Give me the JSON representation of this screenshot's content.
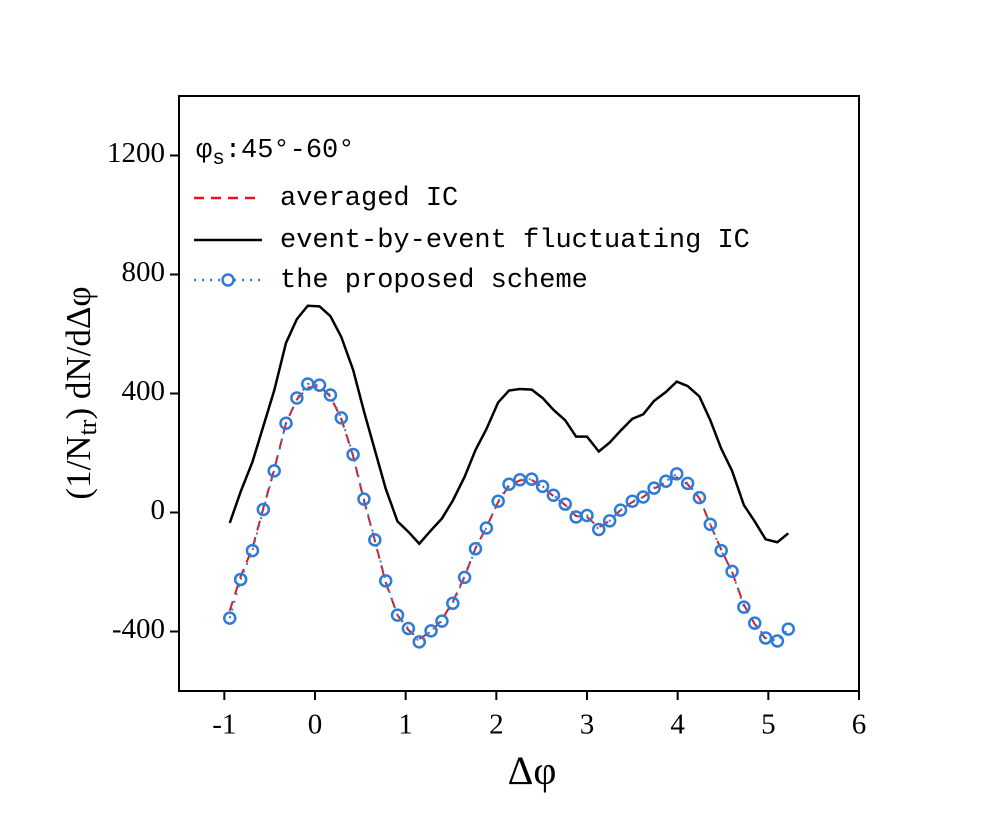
{
  "chart_data": {
    "type": "line",
    "xlabel": "Δφ",
    "ylabel_parts": [
      "(1/N",
      "tr",
      ") dN/dΔφ"
    ],
    "legend_title_parts": [
      "φ",
      "s",
      ":45°-60°"
    ],
    "legend": "upper left",
    "xlim": [
      -1.5,
      6.0
    ],
    "xticks": [
      -1,
      0,
      1,
      2,
      3,
      4,
      5,
      6
    ],
    "ylim": [
      -600,
      1400
    ],
    "yticks": [
      -400,
      0,
      400,
      800,
      1200
    ],
    "series": [
      {
        "name": "averaged IC",
        "color": "#e8141b",
        "style": "dashed",
        "x": [
          -0.94,
          -0.82,
          -0.69,
          -0.57,
          -0.45,
          -0.32,
          -0.2,
          -0.08,
          0.05,
          0.17,
          0.29,
          0.42,
          0.54,
          0.66,
          0.78,
          0.91,
          1.03,
          1.15,
          1.28,
          1.4,
          1.52,
          1.65,
          1.77,
          1.89,
          2.02,
          2.14,
          2.26,
          2.39,
          2.51,
          2.63,
          2.76,
          2.88,
          3.0,
          3.13,
          3.25,
          3.37,
          3.5,
          3.62,
          3.74,
          3.87,
          3.99,
          4.11,
          4.24,
          4.36,
          4.48,
          4.6,
          4.73,
          4.85,
          4.97
        ],
        "values": [
          -330,
          -215,
          -120,
          15,
          145,
          300,
          380,
          420,
          425,
          390,
          315,
          190,
          40,
          -95,
          -235,
          -345,
          -395,
          -425,
          -400,
          -360,
          -300,
          -215,
          -120,
          -50,
          35,
          90,
          108,
          110,
          85,
          55,
          25,
          -12,
          -15,
          -50,
          -28,
          8,
          35,
          52,
          80,
          102,
          118,
          95,
          48,
          -40,
          -125,
          -200,
          -310,
          -375,
          -425
        ]
      },
      {
        "name": "event-by-event fluctuating IC",
        "color": "#000000",
        "style": "solid",
        "x": [
          -0.94,
          -0.82,
          -0.69,
          -0.57,
          -0.45,
          -0.32,
          -0.2,
          -0.08,
          0.05,
          0.17,
          0.29,
          0.42,
          0.54,
          0.66,
          0.78,
          0.91,
          1.03,
          1.15,
          1.28,
          1.4,
          1.52,
          1.65,
          1.77,
          1.89,
          2.02,
          2.14,
          2.26,
          2.39,
          2.51,
          2.63,
          2.76,
          2.88,
          3.0,
          3.13,
          3.25,
          3.37,
          3.5,
          3.62,
          3.74,
          3.87,
          3.99,
          4.11,
          4.24,
          4.36,
          4.48,
          4.6,
          4.73,
          4.85,
          4.97,
          5.1,
          5.22
        ],
        "values": [
          -35,
          70,
          170,
          290,
          410,
          570,
          650,
          695,
          693,
          660,
          590,
          480,
          340,
          210,
          80,
          -30,
          -65,
          -105,
          -60,
          -20,
          40,
          120,
          210,
          280,
          370,
          410,
          415,
          413,
          385,
          345,
          310,
          255,
          255,
          205,
          235,
          275,
          315,
          330,
          375,
          405,
          440,
          425,
          390,
          310,
          215,
          140,
          25,
          -30,
          -90,
          -100,
          -70
        ]
      },
      {
        "name": "the proposed scheme",
        "color": "#2f7bd6",
        "style": "dotted-circle",
        "x": [
          -0.94,
          -0.82,
          -0.69,
          -0.57,
          -0.45,
          -0.32,
          -0.2,
          -0.08,
          0.05,
          0.17,
          0.29,
          0.42,
          0.54,
          0.66,
          0.78,
          0.91,
          1.03,
          1.15,
          1.28,
          1.4,
          1.52,
          1.65,
          1.77,
          1.89,
          2.02,
          2.14,
          2.26,
          2.39,
          2.51,
          2.63,
          2.76,
          2.88,
          3.0,
          3.13,
          3.25,
          3.37,
          3.5,
          3.62,
          3.74,
          3.87,
          3.99,
          4.11,
          4.24,
          4.36,
          4.48,
          4.6,
          4.73,
          4.85,
          4.97,
          5.1,
          5.22
        ],
        "values": [
          -355,
          -225,
          -128,
          10,
          140,
          300,
          385,
          432,
          428,
          395,
          318,
          195,
          45,
          -92,
          -230,
          -345,
          -390,
          -435,
          -398,
          -365,
          -305,
          -218,
          -122,
          -52,
          38,
          95,
          110,
          112,
          88,
          58,
          28,
          -15,
          -10,
          -57,
          -28,
          8,
          38,
          52,
          82,
          105,
          130,
          98,
          50,
          -40,
          -128,
          -198,
          -318,
          -372,
          -422,
          -432,
          -392
        ]
      }
    ]
  }
}
